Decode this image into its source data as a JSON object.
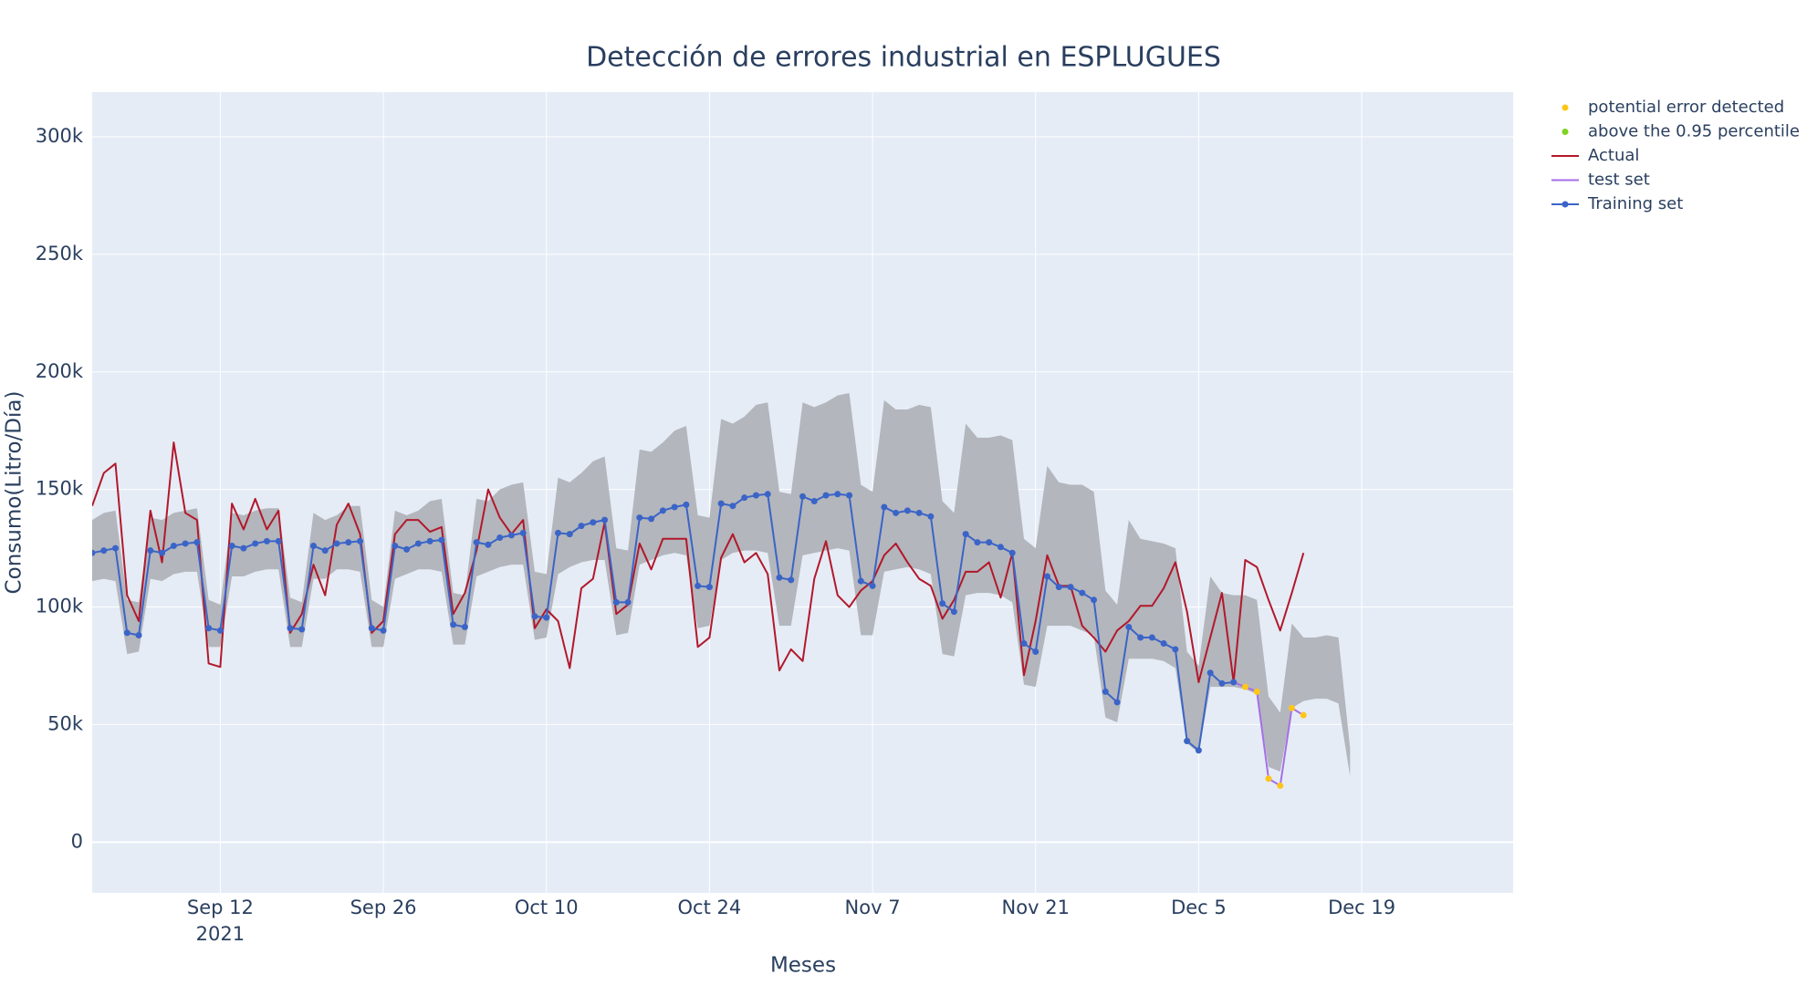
{
  "chart_data": {
    "type": "line",
    "title": "Detección de errores industrial en ESPLUGUES",
    "x_label": "Meses",
    "y_label": "Consumo(Litro/Día)",
    "grid": true,
    "legend_position": "right",
    "xlim": [
      "2021-09-01",
      "2022-01-01"
    ],
    "xticks": [
      {
        "value": "2021-09-12",
        "label": "Sep 12\n2021"
      },
      {
        "value": "2021-09-26",
        "label": "Sep 26"
      },
      {
        "value": "2021-10-10",
        "label": "Oct 10"
      },
      {
        "value": "2021-10-24",
        "label": "Oct 24"
      },
      {
        "value": "2021-11-07",
        "label": "Nov 7"
      },
      {
        "value": "2021-11-21",
        "label": "Nov 21"
      },
      {
        "value": "2021-12-05",
        "label": "Dec 5"
      },
      {
        "value": "2021-12-19",
        "label": "Dec 19"
      }
    ],
    "ylim": [
      -21600,
      319000
    ],
    "yticks": [
      0,
      {
        "value": 50000,
        "label": "50k"
      },
      {
        "value": 100000,
        "label": "100k"
      },
      {
        "value": 150000,
        "label": "150k"
      },
      {
        "value": 200000,
        "label": "200k"
      },
      {
        "value": 250000,
        "label": "250k"
      },
      {
        "value": 300000,
        "label": "300k"
      }
    ],
    "x": [
      "2021-09-01",
      "2021-09-02",
      "2021-09-03",
      "2021-09-04",
      "2021-09-05",
      "2021-09-06",
      "2021-09-07",
      "2021-09-08",
      "2021-09-09",
      "2021-09-10",
      "2021-09-11",
      "2021-09-12",
      "2021-09-13",
      "2021-09-14",
      "2021-09-15",
      "2021-09-16",
      "2021-09-17",
      "2021-09-18",
      "2021-09-19",
      "2021-09-20",
      "2021-09-21",
      "2021-09-22",
      "2021-09-23",
      "2021-09-24",
      "2021-09-25",
      "2021-09-26",
      "2021-09-27",
      "2021-09-28",
      "2021-09-29",
      "2021-09-30",
      "2021-10-01",
      "2021-10-02",
      "2021-10-03",
      "2021-10-04",
      "2021-10-05",
      "2021-10-06",
      "2021-10-07",
      "2021-10-08",
      "2021-10-09",
      "2021-10-10",
      "2021-10-11",
      "2021-10-12",
      "2021-10-13",
      "2021-10-14",
      "2021-10-15",
      "2021-10-16",
      "2021-10-17",
      "2021-10-18",
      "2021-10-19",
      "2021-10-20",
      "2021-10-21",
      "2021-10-22",
      "2021-10-23",
      "2021-10-24",
      "2021-10-25",
      "2021-10-26",
      "2021-10-27",
      "2021-10-28",
      "2021-10-29",
      "2021-10-30",
      "2021-10-31",
      "2021-11-01",
      "2021-11-02",
      "2021-11-03",
      "2021-11-04",
      "2021-11-05",
      "2021-11-06",
      "2021-11-07",
      "2021-11-08",
      "2021-11-09",
      "2021-11-10",
      "2021-11-11",
      "2021-11-12",
      "2021-11-13",
      "2021-11-14",
      "2021-11-15",
      "2021-11-16",
      "2021-11-17",
      "2021-11-18",
      "2021-11-19",
      "2021-11-20",
      "2021-11-21",
      "2021-11-22",
      "2021-11-23",
      "2021-11-24",
      "2021-11-25",
      "2021-11-26",
      "2021-11-27",
      "2021-11-28",
      "2021-11-29",
      "2021-11-30",
      "2021-12-01",
      "2021-12-02",
      "2021-12-03",
      "2021-12-04",
      "2021-12-05",
      "2021-12-06",
      "2021-12-07",
      "2021-12-08",
      "2021-12-09",
      "2021-12-10",
      "2021-12-11",
      "2021-12-12",
      "2021-12-13",
      "2021-12-14",
      "2021-12-15",
      "2021-12-16",
      "2021-12-17",
      "2021-12-18"
    ],
    "band": {
      "color": "#b3b6bc",
      "upper": [
        137000,
        140000,
        141000,
        103000,
        102000,
        138000,
        137000,
        140000,
        141000,
        142000,
        103000,
        101000,
        140000,
        139000,
        141000,
        142000,
        142000,
        104000,
        102000,
        140000,
        137000,
        139000,
        143000,
        143000,
        103000,
        100000,
        141000,
        139000,
        141000,
        145000,
        146000,
        106000,
        105000,
        146000,
        145000,
        150000,
        152000,
        153000,
        115000,
        114000,
        155000,
        153000,
        157000,
        162000,
        164000,
        125000,
        124000,
        167000,
        166000,
        170000,
        175000,
        177000,
        139000,
        138000,
        180000,
        178000,
        181000,
        186000,
        187000,
        149000,
        148000,
        187000,
        185000,
        187000,
        190000,
        191000,
        152000,
        149000,
        188000,
        184000,
        184000,
        186000,
        185000,
        145000,
        140000,
        178000,
        172000,
        172000,
        173000,
        171000,
        129000,
        125000,
        160000,
        153000,
        152000,
        152000,
        149000,
        107000,
        101000,
        137000,
        129000,
        128000,
        127000,
        125000,
        81000,
        75000,
        113000,
        106000,
        105000,
        105000,
        103000,
        62000,
        55000,
        93000,
        87000,
        87000,
        88000,
        87000,
        40000
      ],
      "lower": [
        111000,
        112000,
        111000,
        80000,
        81000,
        112000,
        111000,
        114000,
        115000,
        115000,
        83000,
        83000,
        113000,
        113000,
        115000,
        116000,
        116000,
        83000,
        83000,
        112000,
        112000,
        116000,
        116000,
        115000,
        83000,
        83000,
        112000,
        114000,
        116000,
        116000,
        115000,
        84000,
        84000,
        113000,
        115000,
        117000,
        118000,
        118000,
        86000,
        87000,
        114000,
        117000,
        119000,
        120000,
        120000,
        88000,
        89000,
        118000,
        120000,
        122000,
        123000,
        122000,
        91000,
        92000,
        120000,
        123000,
        124000,
        124000,
        123000,
        92000,
        92000,
        122000,
        123000,
        124000,
        125000,
        124000,
        88000,
        88000,
        115000,
        116000,
        117000,
        116000,
        114000,
        80000,
        79000,
        105000,
        106000,
        106000,
        105000,
        102000,
        67000,
        66000,
        92000,
        92000,
        92000,
        90000,
        88000,
        53000,
        51000,
        78000,
        78000,
        78000,
        77000,
        74000,
        42000,
        38000,
        66000,
        66000,
        66000,
        65000,
        63000,
        32000,
        30000,
        57000,
        60000,
        61000,
        61000,
        59000,
        28000
      ]
    },
    "series": [
      {
        "name": "potential error detected",
        "color": "#ffc61a",
        "mode": "markers",
        "x": [
          "2021-12-09",
          "2021-12-10",
          "2021-12-11",
          "2021-12-12",
          "2021-12-13",
          "2021-12-14"
        ],
        "values": [
          66000,
          64000,
          27000,
          24000,
          57000,
          54000
        ]
      },
      {
        "name": "above the 0.95 percentile",
        "color": "#7ed321",
        "mode": "markers",
        "x": [
          "2021-10-12",
          "2021-11-01",
          "2021-11-05",
          "2021-12-04"
        ],
        "values": [
          131000,
          147000,
          147500,
          43000
        ]
      },
      {
        "name": "Actual",
        "color": "#b2182b",
        "mode": "lines",
        "values": [
          143000,
          157000,
          161000,
          105000,
          94000,
          141000,
          119000,
          170000,
          140000,
          137000,
          76000,
          74500,
          144000,
          133000,
          146000,
          133000,
          141000,
          89000,
          97000,
          118000,
          105000,
          135000,
          144000,
          131000,
          89000,
          94000,
          131000,
          137000,
          137000,
          132000,
          134000,
          97000,
          106000,
          124000,
          150000,
          138000,
          131000,
          137000,
          91000,
          99000,
          94000,
          74000,
          108000,
          112000,
          136000,
          97000,
          101000,
          127000,
          116000,
          129000,
          129000,
          129000,
          83000,
          87000,
          121000,
          131000,
          119000,
          123000,
          114000,
          73000,
          82000,
          77000,
          112000,
          128000,
          105000,
          100000,
          107000,
          111000,
          122000,
          127000,
          119000,
          112000,
          109000,
          95000,
          103000,
          115000,
          115000,
          119000,
          104000,
          123000,
          71000,
          94000,
          122000,
          109000,
          109000,
          92000,
          87000,
          81000,
          90000,
          94000,
          100500,
          100500,
          108000,
          119000,
          98000,
          68000,
          87000,
          106000,
          68000,
          120000,
          117000,
          103000,
          90000,
          106000,
          123000,
          null,
          null,
          null,
          null
        ]
      },
      {
        "name": "test set",
        "color": "#a66ee8",
        "mode": "lines",
        "x": [
          "2021-12-08",
          "2021-12-09",
          "2021-12-10",
          "2021-12-11",
          "2021-12-12",
          "2021-12-13",
          "2021-12-14"
        ],
        "values": [
          68000,
          66000,
          64000,
          27000,
          24000,
          57000,
          54000
        ]
      },
      {
        "name": "Training set",
        "color": "#3b64c8",
        "mode": "lines+markers",
        "values": [
          123000,
          124000,
          125000,
          89000,
          88000,
          124000,
          123000,
          126000,
          127000,
          127500,
          91000,
          90000,
          126000,
          125000,
          127000,
          128000,
          128000,
          91000,
          90500,
          126000,
          124000,
          127000,
          127500,
          128000,
          91000,
          90000,
          126000,
          124500,
          127000,
          128000,
          128500,
          92500,
          91500,
          127500,
          126500,
          129500,
          130500,
          131500,
          96000,
          95500,
          131500,
          131000,
          134500,
          136000,
          137000,
          102000,
          102000,
          138000,
          137500,
          141000,
          142500,
          143500,
          109000,
          108500,
          144000,
          143000,
          146500,
          147500,
          148000,
          112500,
          111500,
          147000,
          145000,
          147500,
          148000,
          147500,
          111000,
          109000,
          142500,
          140000,
          141000,
          140000,
          138500,
          101500,
          98000,
          131000,
          127500,
          127500,
          125500,
          123000,
          84500,
          81000,
          113000,
          108500,
          108500,
          106000,
          103000,
          64000,
          59500,
          91500,
          87000,
          87000,
          84500,
          82000,
          43000,
          39000,
          72000,
          67500,
          68000,
          null,
          null,
          null,
          null,
          null,
          null,
          null,
          null,
          null,
          null
        ]
      }
    ]
  }
}
